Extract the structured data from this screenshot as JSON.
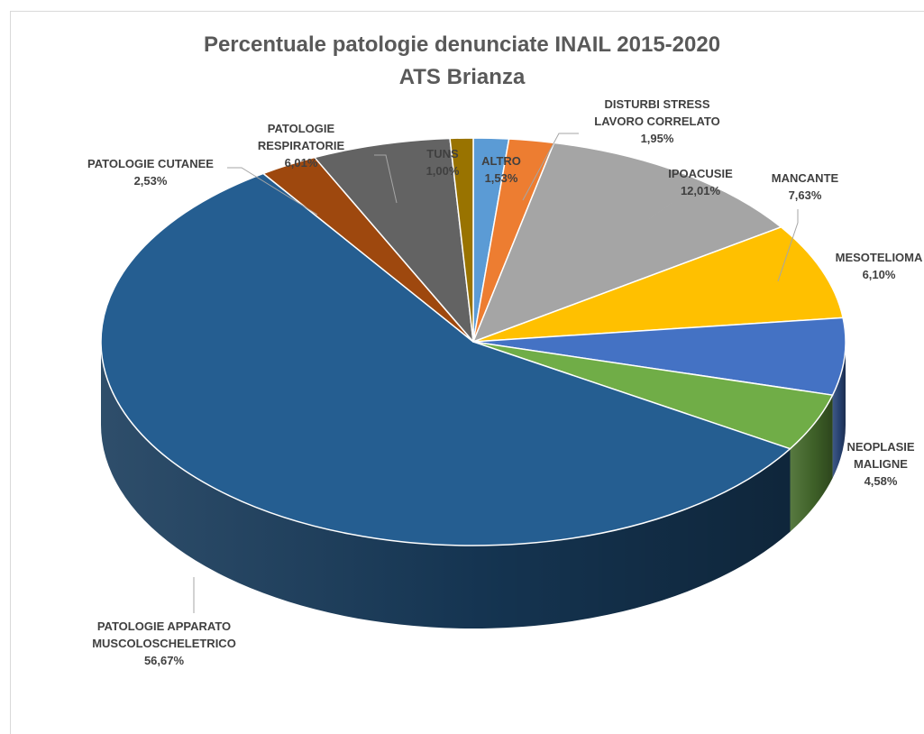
{
  "chart_data": {
    "type": "pie",
    "title": "Percentuale patologie denunciate  INAIL 2015-2020",
    "subtitle": "ATS Brianza",
    "slices": [
      {
        "label": "ALTRO",
        "label_lines": [
          "ALTRO"
        ],
        "value": 1.53,
        "value_label": "1,53%",
        "color": "#5b9bd5"
      },
      {
        "label": "DISTURBI STRESS LAVORO CORRELATO",
        "label_lines": [
          "DISTURBI STRESS",
          "LAVORO CORRELATO"
        ],
        "value": 1.95,
        "value_label": "1,95%",
        "color": "#ed7d31"
      },
      {
        "label": "IPOACUSIE",
        "label_lines": [
          "IPOACUSIE"
        ],
        "value": 12.01,
        "value_label": "12,01%",
        "color": "#a5a5a5"
      },
      {
        "label": "MANCANTE",
        "label_lines": [
          "MANCANTE"
        ],
        "value": 7.63,
        "value_label": "7,63%",
        "color": "#ffc000"
      },
      {
        "label": "MESOTELIOMA",
        "label_lines": [
          "MESOTELIOMA"
        ],
        "value": 6.1,
        "value_label": "6,10%",
        "color": "#4472c4"
      },
      {
        "label": "NEOPLASIE MALIGNE",
        "label_lines": [
          "NEOPLASIE",
          "MALIGNE"
        ],
        "value": 4.58,
        "value_label": "4,58%",
        "color": "#70ad47"
      },
      {
        "label": "PATOLOGIE APPARATO MUSCOLOSCHELETRICO",
        "label_lines": [
          "PATOLOGIE APPARATO",
          "MUSCOLOSCHELETRICO"
        ],
        "value": 56.67,
        "value_label": "56,67%",
        "color": "#255e91"
      },
      {
        "label": "PATOLOGIE CUTANEE",
        "label_lines": [
          "PATOLOGIE CUTANEE"
        ],
        "value": 2.53,
        "value_label": "2,53%",
        "color": "#9e480e"
      },
      {
        "label": "PATOLOGIE RESPIRATORIE",
        "label_lines": [
          "PATOLOGIE",
          "RESPIRATORIE"
        ],
        "value": 6.01,
        "value_label": "6,01%",
        "color": "#636363"
      },
      {
        "label": "TUNS",
        "label_lines": [
          "TUNS"
        ],
        "value": 1.0,
        "value_label": "1,00%",
        "color": "#997300"
      }
    ],
    "start": "top, clockwise",
    "style": "3D pie",
    "legend": "none (data labels with leader lines)"
  }
}
